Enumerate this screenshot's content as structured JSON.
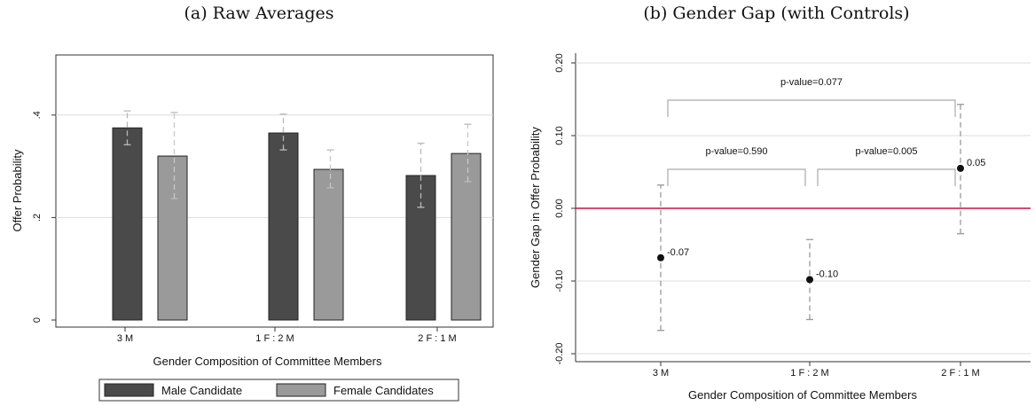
{
  "chart_data": [
    {
      "type": "bar",
      "title": "(a) Raw Averages",
      "xlabel": "Gender Composition of Committee Members",
      "ylabel": "Offer Probability",
      "categories": [
        "3 M",
        "1 F : 2 M",
        "2 F : 1 M"
      ],
      "ylim": [
        0,
        0.5
      ],
      "yticks": [
        0,
        0.2,
        0.4
      ],
      "ytick_labels": [
        "0",
        ".2",
        ".4"
      ],
      "grid": true,
      "legend_position": "bottom",
      "series": [
        {
          "name": "Male Candidate",
          "color": "#4a4a4a",
          "values": [
            0.375,
            0.365,
            0.282
          ],
          "ci_low": [
            0.342,
            0.332,
            0.22
          ],
          "ci_high": [
            0.408,
            0.402,
            0.345
          ]
        },
        {
          "name": "Female Candidates",
          "color": "#9a9a9a",
          "values": [
            0.32,
            0.294,
            0.325
          ],
          "ci_low": [
            0.237,
            0.258,
            0.27
          ],
          "ci_high": [
            0.405,
            0.332,
            0.382
          ]
        }
      ]
    },
    {
      "type": "scatter",
      "title": "(b) Gender Gap (with Controls)",
      "xlabel": "Gender Composition of Committee Members",
      "ylabel": "Gender Gap in Offer Probability",
      "categories": [
        "3 M",
        "1 F : 2 M",
        "2 F : 1 M"
      ],
      "ylim": [
        -0.2,
        0.2
      ],
      "yticks": [
        -0.2,
        -0.1,
        0.0,
        0.1,
        0.2
      ],
      "ytick_labels": [
        "-0.20",
        "-0.10",
        "0.00",
        "0.10",
        "0.20"
      ],
      "grid": true,
      "reference_line": {
        "y": 0,
        "color": "#c8103e"
      },
      "points": [
        {
          "category": "3 M",
          "value": -0.068,
          "label": "-0.07",
          "ci_low": -0.168,
          "ci_high": 0.032
        },
        {
          "category": "1 F : 2 M",
          "value": -0.098,
          "label": "-0.10",
          "ci_low": -0.153,
          "ci_high": -0.043
        },
        {
          "category": "2 F : 1 M",
          "value": 0.055,
          "label": "0.05",
          "ci_low": -0.035,
          "ci_high": 0.143
        }
      ],
      "brackets": [
        {
          "from": 0,
          "to": 2,
          "text": "p-value=0.077"
        },
        {
          "from": 0,
          "to": 1,
          "text": "p-value=0.590"
        },
        {
          "from": 1,
          "to": 2,
          "text": "p-value=0.005"
        }
      ]
    }
  ]
}
